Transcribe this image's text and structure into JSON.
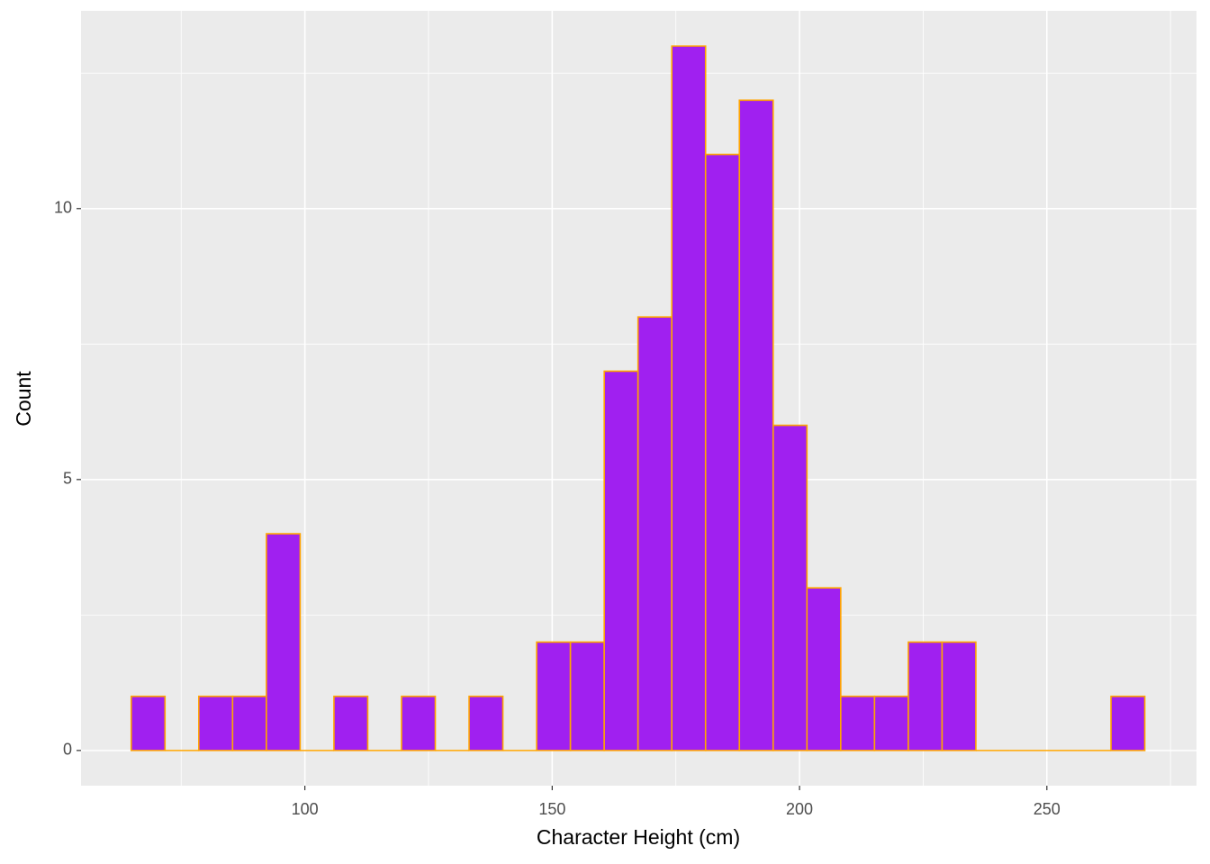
{
  "chart_data": {
    "type": "histogram",
    "x_label": "Character Height (cm)",
    "y_label": "Count",
    "bins": [
      64.9,
      71.73,
      78.56,
      85.39,
      92.22,
      99.05,
      105.88,
      112.71,
      119.54,
      126.37,
      133.2,
      140.03,
      146.86,
      153.69,
      160.52,
      167.35,
      174.18,
      181.01,
      187.84,
      194.67,
      201.5,
      208.33,
      215.16,
      221.99,
      228.82,
      235.65,
      242.48,
      249.31,
      256.14,
      262.97,
      269.8
    ],
    "values": [
      1,
      0,
      1,
      1,
      4,
      0,
      1,
      0,
      1,
      0,
      1,
      0,
      2,
      2,
      7,
      8,
      13,
      11,
      12,
      6,
      3,
      1,
      1,
      2,
      2,
      0,
      0,
      0,
      0,
      1
    ],
    "color": "#a020f0",
    "edge_color": "#ffa500",
    "xlim": [
      54.75,
      280.25
    ],
    "xticks": [
      100,
      150,
      200,
      250
    ],
    "ylim": [
      -0.65,
      13.65
    ],
    "yticks": [
      0,
      5,
      10
    ],
    "grid": true
  }
}
